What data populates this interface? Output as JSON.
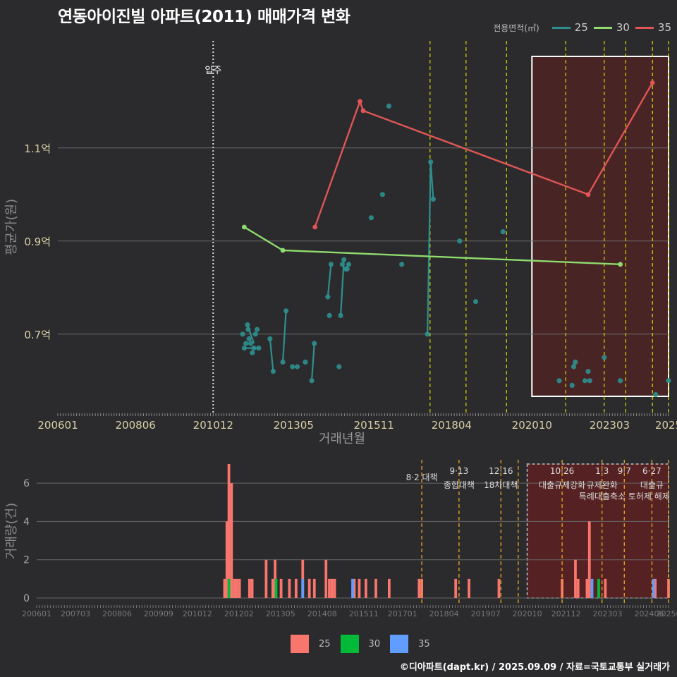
{
  "title": "연동아이진빌 아파트(2011) 매매가격 변화",
  "caption": "©디아파트(dapt.kr) / 2025.09.09 / 자료=국토교통부 실거래가",
  "legend_top": {
    "title": "전용면적(㎡)",
    "items": [
      {
        "label": "25",
        "color": "#2f8f8f"
      },
      {
        "label": "30",
        "color": "#8fdc6e"
      },
      {
        "label": "35",
        "color": "#e05555"
      }
    ]
  },
  "legend_bottom": {
    "items": [
      {
        "label": "25",
        "color": "#f8766d"
      },
      {
        "label": "30",
        "color": "#00ba38"
      },
      {
        "label": "35",
        "color": "#619cff"
      }
    ]
  },
  "chart_data": [
    {
      "type": "line",
      "title": "연동아이진빌 아파트(2011) 매매가격 변화",
      "xlabel": "거래년월",
      "ylabel": "평균가(원)",
      "xlim": [
        2006.0,
        2025.0
      ],
      "ylim": [
        0.53,
        1.33
      ],
      "x_ticks": [
        {
          "v": 2006.0,
          "label": "200601"
        },
        {
          "v": 2008.4167,
          "label": "200806"
        },
        {
          "v": 2010.8333,
          "label": "201012"
        },
        {
          "v": 2013.3333,
          "label": "201305"
        },
        {
          "v": 2015.8333,
          "label": "201511"
        },
        {
          "v": 2018.25,
          "label": "201804"
        },
        {
          "v": 2020.75,
          "label": "202010"
        },
        {
          "v": 2023.1667,
          "label": "202303"
        },
        {
          "v": 2025.0,
          "label": "2025"
        }
      ],
      "y_ticks": [
        {
          "v": 0.7,
          "label": "0.7억"
        },
        {
          "v": 0.9,
          "label": "0.9억"
        },
        {
          "v": 1.1,
          "label": "1.1억"
        }
      ],
      "move_in": {
        "x": 2010.8333,
        "label": "입주"
      },
      "policy_lines": [
        2017.58,
        2018.7,
        2019.96,
        2021.8,
        2023.0,
        2023.67,
        2024.5,
        2025.0
      ],
      "highlight_range": [
        2020.75,
        2025.0
      ],
      "series": [
        {
          "name": "25",
          "color": "#2f8f8f",
          "points": [
            [
              2011.75,
              0.7
            ],
            [
              2011.8,
              0.67
            ],
            [
              2011.85,
              0.68
            ],
            [
              2011.9,
              0.72
            ],
            [
              2011.92,
              0.71
            ],
            [
              2011.95,
              0.69
            ],
            [
              2012.0,
              0.68
            ],
            [
              2012.05,
              0.66
            ],
            [
              2012.1,
              0.67
            ],
            [
              2012.15,
              0.7
            ],
            [
              2012.2,
              0.71
            ],
            [
              2012.25,
              0.67
            ],
            [
              2012.6,
              0.69
            ],
            [
              2012.7,
              0.62
            ],
            [
              2013.0,
              0.64
            ],
            [
              2013.1,
              0.75
            ],
            [
              2013.3,
              0.63
            ],
            [
              2013.45,
              0.63
            ],
            [
              2013.7,
              0.64
            ],
            [
              2013.9,
              0.6
            ],
            [
              2013.98,
              0.68
            ],
            [
              2014.4,
              0.78
            ],
            [
              2014.45,
              0.74
            ],
            [
              2014.5,
              0.85
            ],
            [
              2014.75,
              0.63
            ],
            [
              2014.8,
              0.74
            ],
            [
              2014.85,
              0.85
            ],
            [
              2014.9,
              0.86
            ],
            [
              2014.95,
              0.84
            ],
            [
              2015.0,
              0.84
            ],
            [
              2015.05,
              0.85
            ],
            [
              2015.75,
              0.95
            ],
            [
              2016.1,
              1.0
            ],
            [
              2016.3,
              1.19
            ],
            [
              2016.7,
              0.85
            ],
            [
              2017.5,
              0.7
            ],
            [
              2017.6,
              1.07
            ],
            [
              2017.68,
              0.99
            ],
            [
              2018.5,
              0.9
            ],
            [
              2019.0,
              0.77
            ],
            [
              2019.85,
              0.92
            ],
            [
              2021.6,
              0.6
            ],
            [
              2022.0,
              0.59
            ],
            [
              2022.05,
              0.63
            ],
            [
              2022.1,
              0.64
            ],
            [
              2022.4,
              0.6
            ],
            [
              2022.5,
              0.62
            ],
            [
              2022.55,
              0.6
            ],
            [
              2023.0,
              0.65
            ],
            [
              2023.5,
              0.6
            ],
            [
              2024.6,
              0.57
            ],
            [
              2025.0,
              0.6
            ]
          ]
        },
        {
          "name": "30",
          "color": "#8fdc6e",
          "points": [
            [
              2011.8,
              0.93
            ],
            [
              2013.0,
              0.88
            ],
            [
              2023.5,
              0.85
            ]
          ]
        },
        {
          "name": "35",
          "color": "#e05555",
          "points": [
            [
              2014.0,
              0.93
            ],
            [
              2015.4,
              1.2
            ],
            [
              2015.5,
              1.18
            ],
            [
              2022.5,
              1.0
            ],
            [
              2024.5,
              1.24
            ]
          ]
        }
      ],
      "teal_links": [
        [
          [
            2011.8,
            0.67
          ],
          [
            2012.25,
            0.67
          ]
        ],
        [
          [
            2011.9,
            0.72
          ],
          [
            2012.1,
            0.68
          ]
        ],
        [
          [
            2012.6,
            0.69
          ],
          [
            2012.7,
            0.62
          ]
        ],
        [
          [
            2013.0,
            0.64
          ],
          [
            2013.1,
            0.75
          ]
        ],
        [
          [
            2013.9,
            0.6
          ],
          [
            2013.98,
            0.68
          ]
        ],
        [
          [
            2014.4,
            0.78
          ],
          [
            2014.5,
            0.85
          ]
        ],
        [
          [
            2014.8,
            0.74
          ],
          [
            2014.9,
            0.86
          ]
        ],
        [
          [
            2014.95,
            0.84
          ],
          [
            2015.05,
            0.85
          ]
        ],
        [
          [
            2017.5,
            0.7
          ],
          [
            2017.6,
            1.07
          ]
        ],
        [
          [
            2017.6,
            1.07
          ],
          [
            2017.68,
            0.99
          ]
        ],
        [
          [
            2022.0,
            0.63
          ],
          [
            2022.1,
            0.64
          ]
        ]
      ]
    },
    {
      "type": "bar",
      "xlabel": "",
      "ylabel": "거래량(건)",
      "xlim": [
        2006.0,
        2025.0
      ],
      "ylim": [
        0,
        7
      ],
      "x_ticks": [
        {
          "v": 2006.0,
          "label": "200601"
        },
        {
          "v": 2007.1667,
          "label": "200703"
        },
        {
          "v": 2008.4167,
          "label": "200806"
        },
        {
          "v": 2009.6667,
          "label": "200909"
        },
        {
          "v": 2010.8333,
          "label": "201012"
        },
        {
          "v": 2012.0833,
          "label": "201202"
        },
        {
          "v": 2013.3333,
          "label": "201305"
        },
        {
          "v": 2014.5833,
          "label": "201408"
        },
        {
          "v": 2015.8333,
          "label": "201511"
        },
        {
          "v": 2017.0,
          "label": "201701"
        },
        {
          "v": 2018.25,
          "label": "201804"
        },
        {
          "v": 2019.5,
          "label": "201907"
        },
        {
          "v": 2020.75,
          "label": "202010"
        },
        {
          "v": 2021.9167,
          "label": "202112"
        },
        {
          "v": 2023.1667,
          "label": "202303"
        },
        {
          "v": 2024.4167,
          "label": "202406"
        },
        {
          "v": 2025.0,
          "label": "20250"
        }
      ],
      "y_ticks": [
        {
          "v": 0,
          "label": "0"
        },
        {
          "v": 2,
          "label": "2"
        },
        {
          "v": 4,
          "label": "4"
        },
        {
          "v": 6,
          "label": "6"
        }
      ],
      "highlight_range": [
        2020.75,
        2025.0
      ],
      "policy_events": [
        {
          "x": 2017.58,
          "label": "8·2 대책",
          "sub": ""
        },
        {
          "x": 2018.7,
          "label": "9·13",
          "sub": "종합대책"
        },
        {
          "x": 2019.96,
          "label": "12·16",
          "sub": "18차대책"
        },
        {
          "x": 2020.48,
          "label": "",
          "sub": ""
        },
        {
          "x": 2021.8,
          "label": "10·26",
          "sub": "대출규제강화"
        },
        {
          "x": 2023.0,
          "label": "1·3",
          "sub": "규제완화"
        },
        {
          "x": 2023.67,
          "label": "9·7",
          "sub": "특례대출축소 토허제 해제"
        },
        {
          "x": 2024.5,
          "label": "6·27",
          "sub": "대출규"
        },
        {
          "x": 2025.0,
          "label": "",
          "sub": ""
        }
      ],
      "bar_width_years": 0.08,
      "series": [
        {
          "name": "25",
          "color": "#f8766d",
          "bars": [
            [
              2011.65,
              1
            ],
            [
              2011.72,
              4
            ],
            [
              2011.78,
              7
            ],
            [
              2011.86,
              6
            ],
            [
              2011.94,
              1
            ],
            [
              2012.02,
              1
            ],
            [
              2012.1,
              1
            ],
            [
              2012.4,
              1
            ],
            [
              2012.48,
              1
            ],
            [
              2012.9,
              2
            ],
            [
              2013.1,
              1
            ],
            [
              2013.17,
              2
            ],
            [
              2013.35,
              1
            ],
            [
              2013.6,
              1
            ],
            [
              2013.8,
              1
            ],
            [
              2014.0,
              2
            ],
            [
              2014.2,
              1
            ],
            [
              2014.35,
              1
            ],
            [
              2014.7,
              2
            ],
            [
              2014.8,
              1
            ],
            [
              2014.88,
              1
            ],
            [
              2014.96,
              1
            ],
            [
              2015.55,
              1
            ],
            [
              2015.7,
              1
            ],
            [
              2015.9,
              1
            ],
            [
              2016.2,
              1
            ],
            [
              2016.6,
              1
            ],
            [
              2017.5,
              1
            ],
            [
              2017.58,
              1
            ],
            [
              2018.6,
              1
            ],
            [
              2019.0,
              1
            ],
            [
              2019.9,
              1
            ],
            [
              2021.8,
              1
            ],
            [
              2022.2,
              2
            ],
            [
              2022.28,
              1
            ],
            [
              2022.55,
              1
            ],
            [
              2022.62,
              4
            ],
            [
              2023.1,
              1
            ],
            [
              2024.6,
              1
            ],
            [
              2025.0,
              1
            ]
          ]
        },
        {
          "name": "30",
          "color": "#00ba38",
          "bars": [
            [
              2011.78,
              1
            ],
            [
              2013.2,
              1
            ],
            [
              2022.9,
              1
            ]
          ]
        },
        {
          "name": "35",
          "color": "#619cff",
          "bars": [
            [
              2014.0,
              1
            ],
            [
              2015.5,
              1
            ],
            [
              2022.7,
              1
            ],
            [
              2024.55,
              1
            ]
          ]
        }
      ]
    }
  ]
}
